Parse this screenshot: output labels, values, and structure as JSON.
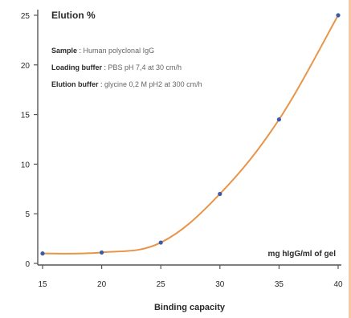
{
  "chart_data": {
    "type": "line",
    "title": "Elution %",
    "xlabel": "Binding capacity",
    "x_unit_label": "mg hIgG/ml of gel",
    "annotations": [
      {
        "label": "Sample",
        "value": "Human polyclonal IgG"
      },
      {
        "label": "Loading buffer",
        "value": "PBS pH 7,4 at 30 cm/h"
      },
      {
        "label": "Elution buffer",
        "value": "glycine 0,2 M pH2 at 300 cm/h"
      }
    ],
    "xlim": [
      15,
      40
    ],
    "ylim": [
      0,
      25
    ],
    "x_ticks": [
      15,
      20,
      25,
      30,
      35,
      40
    ],
    "y_ticks": [
      0,
      5,
      10,
      15,
      20,
      25
    ],
    "grid": false,
    "series": [
      {
        "x": [
          15,
          20,
          25,
          30,
          35,
          40
        ],
        "y": [
          1.0,
          1.1,
          2.1,
          7.0,
          14.5,
          25.0
        ],
        "line_color": "#e8954a",
        "marker_color": "#3b5aa8"
      }
    ]
  }
}
